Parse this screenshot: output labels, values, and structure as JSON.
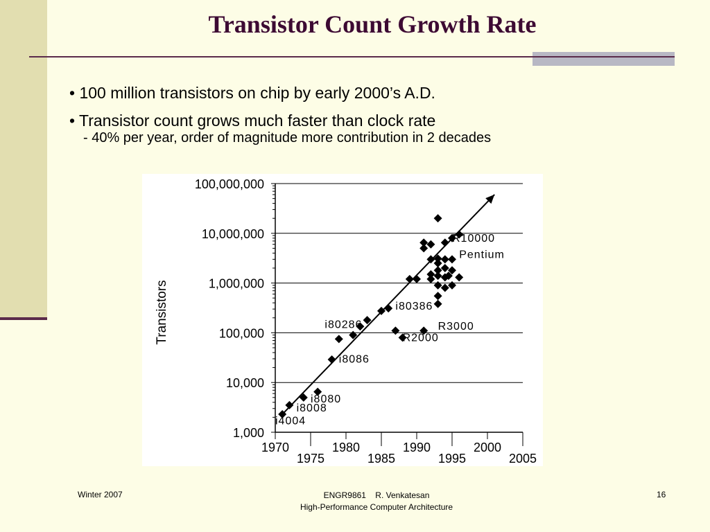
{
  "slide": {
    "title": "Transistor Count Growth Rate",
    "bullets": [
      "• 100 million transistors on chip by early 2000’s A.D.",
      "• Transistor count grows much faster than clock rate"
    ],
    "sub_bullet": "- 40% per year, order of magnitude more contribution in 2 decades"
  },
  "footer": {
    "left": "Winter 2007",
    "center_line1": "ENGR9861    R. Venkatesan",
    "center_line2": "High-Performance Computer Architecture",
    "right": "16"
  },
  "colors": {
    "title": "#3d0a33",
    "accent_band": "#e2deb0",
    "rule": "#5a2a4a"
  },
  "chart_data": {
    "type": "scatter",
    "ylabel": "Transistors",
    "xlim": [
      1970,
      2005
    ],
    "ylim_log10": [
      3,
      8
    ],
    "y_scale": "log",
    "x_ticks_upper": [
      "1970",
      "1980",
      "1990",
      "2000"
    ],
    "x_ticks_lower": [
      "1975",
      "1985",
      "1995",
      "2005"
    ],
    "y_ticks": [
      "1,000",
      "10,000",
      "100,000",
      "1,000,000",
      "10,000,000",
      "100,000,000"
    ],
    "trend": {
      "x": [
        1971,
        2001
      ],
      "y": [
        2300,
        60000000
      ]
    },
    "points": [
      {
        "x": 1971,
        "y": 2300
      },
      {
        "x": 1972,
        "y": 3500
      },
      {
        "x": 1974,
        "y": 5000
      },
      {
        "x": 1976,
        "y": 6500
      },
      {
        "x": 1978,
        "y": 29000
      },
      {
        "x": 1979,
        "y": 75000
      },
      {
        "x": 1981,
        "y": 90000
      },
      {
        "x": 1982,
        "y": 134000
      },
      {
        "x": 1983,
        "y": 180000
      },
      {
        "x": 1985,
        "y": 275000
      },
      {
        "x": 1986,
        "y": 310000
      },
      {
        "x": 1987,
        "y": 110000
      },
      {
        "x": 1988,
        "y": 80000
      },
      {
        "x": 1989,
        "y": 1200000
      },
      {
        "x": 1990,
        "y": 1200000
      },
      {
        "x": 1991,
        "y": 110000
      },
      {
        "x": 1991,
        "y": 5000000
      },
      {
        "x": 1991,
        "y": 6500000
      },
      {
        "x": 1992,
        "y": 6000000
      },
      {
        "x": 1992,
        "y": 3000000
      },
      {
        "x": 1992,
        "y": 1500000
      },
      {
        "x": 1992,
        "y": 1200000
      },
      {
        "x": 1993,
        "y": 3100000
      },
      {
        "x": 1993,
        "y": 2500000
      },
      {
        "x": 1993,
        "y": 1800000
      },
      {
        "x": 1993,
        "y": 1400000
      },
      {
        "x": 1993,
        "y": 900000
      },
      {
        "x": 1993,
        "y": 550000
      },
      {
        "x": 1993,
        "y": 380000
      },
      {
        "x": 1993,
        "y": 20000000
      },
      {
        "x": 1994,
        "y": 3000000
      },
      {
        "x": 1994,
        "y": 2000000
      },
      {
        "x": 1994,
        "y": 1300000
      },
      {
        "x": 1994,
        "y": 800000
      },
      {
        "x": 1994,
        "y": 6500000
      },
      {
        "x": 1995,
        "y": 8000000
      },
      {
        "x": 1995,
        "y": 3000000
      },
      {
        "x": 1995,
        "y": 1800000
      },
      {
        "x": 1995,
        "y": 900000
      },
      {
        "x": 1996,
        "y": 1300000
      },
      {
        "x": 1996,
        "y": 9500000
      },
      {
        "x": 1994.5,
        "y": 1400000
      }
    ],
    "annotations": [
      {
        "text": "R10000",
        "x": 1995,
        "y": 6800000
      },
      {
        "text": "Pentium",
        "x": 1996,
        "y": 3200000
      },
      {
        "text": "i80386",
        "x": 1987,
        "y": 290000
      },
      {
        "text": "R3000",
        "x": 1993,
        "y": 115000
      },
      {
        "text": "i80286",
        "x": 1977,
        "y": 125000
      },
      {
        "text": "R2000",
        "x": 1988,
        "y": 68000
      },
      {
        "text": "i8086",
        "x": 1979,
        "y": 25000
      },
      {
        "text": "i8080",
        "x": 1975,
        "y": 4000
      },
      {
        "text": "i8008",
        "x": 1973,
        "y": 2600
      },
      {
        "text": "i4004",
        "x": 1970,
        "y": 1450
      }
    ]
  }
}
